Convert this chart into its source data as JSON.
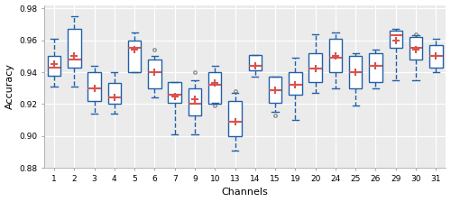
{
  "channels": [
    1,
    2,
    3,
    4,
    5,
    6,
    7,
    9,
    10,
    13,
    14,
    15,
    19,
    20,
    24,
    25,
    26,
    29,
    30,
    31
  ],
  "boxes": [
    {
      "q1": 0.938,
      "median": 0.943,
      "q3": 0.95,
      "mean": 0.945,
      "whislo": 0.931,
      "whishi": 0.961,
      "fliers": []
    },
    {
      "q1": 0.943,
      "median": 0.948,
      "q3": 0.967,
      "mean": 0.95,
      "whislo": 0.931,
      "whishi": 0.975,
      "fliers": []
    },
    {
      "q1": 0.922,
      "median": 0.93,
      "q3": 0.94,
      "mean": 0.93,
      "whislo": 0.914,
      "whishi": 0.944,
      "fliers": []
    },
    {
      "q1": 0.92,
      "median": 0.924,
      "q3": 0.933,
      "mean": 0.924,
      "whislo": 0.914,
      "whishi": 0.94,
      "fliers": []
    },
    {
      "q1": 0.94,
      "median": 0.955,
      "q3": 0.96,
      "mean": 0.954,
      "whislo": 0.94,
      "whishi": 0.965,
      "fliers": []
    },
    {
      "q1": 0.93,
      "median": 0.94,
      "q3": 0.948,
      "mean": 0.94,
      "whislo": 0.924,
      "whishi": 0.95,
      "fliers": [
        0.954
      ]
    },
    {
      "q1": 0.921,
      "median": 0.926,
      "q3": 0.934,
      "mean": 0.925,
      "whislo": 0.901,
      "whishi": 0.934,
      "fliers": []
    },
    {
      "q1": 0.913,
      "median": 0.92,
      "q3": 0.93,
      "mean": 0.923,
      "whislo": 0.901,
      "whishi": 0.935,
      "fliers": [
        0.94
      ]
    },
    {
      "q1": 0.92,
      "median": 0.932,
      "q3": 0.94,
      "mean": 0.933,
      "whislo": 0.921,
      "whishi": 0.944,
      "fliers": [
        0.919
      ]
    },
    {
      "q1": 0.9,
      "median": 0.909,
      "q3": 0.922,
      "mean": 0.909,
      "whislo": 0.891,
      "whishi": 0.927,
      "fliers": [
        0.928
      ]
    },
    {
      "q1": 0.941,
      "median": 0.944,
      "q3": 0.951,
      "mean": 0.944,
      "whislo": 0.937,
      "whishi": 0.951,
      "fliers": []
    },
    {
      "q1": 0.921,
      "median": 0.929,
      "q3": 0.937,
      "mean": 0.929,
      "whislo": 0.915,
      "whishi": 0.937,
      "fliers": [
        0.913
      ]
    },
    {
      "q1": 0.926,
      "median": 0.932,
      "q3": 0.94,
      "mean": 0.932,
      "whislo": 0.91,
      "whishi": 0.949,
      "fliers": []
    },
    {
      "q1": 0.934,
      "median": 0.942,
      "q3": 0.952,
      "mean": 0.942,
      "whislo": 0.927,
      "whishi": 0.964,
      "fliers": []
    },
    {
      "q1": 0.94,
      "median": 0.949,
      "q3": 0.961,
      "mean": 0.95,
      "whislo": 0.93,
      "whishi": 0.965,
      "fliers": []
    },
    {
      "q1": 0.93,
      "median": 0.94,
      "q3": 0.95,
      "mean": 0.94,
      "whislo": 0.919,
      "whishi": 0.952,
      "fliers": []
    },
    {
      "q1": 0.934,
      "median": 0.944,
      "q3": 0.952,
      "mean": 0.944,
      "whislo": 0.93,
      "whishi": 0.954,
      "fliers": []
    },
    {
      "q1": 0.955,
      "median": 0.963,
      "q3": 0.966,
      "mean": 0.96,
      "whislo": 0.935,
      "whishi": 0.967,
      "fliers": []
    },
    {
      "q1": 0.948,
      "median": 0.955,
      "q3": 0.962,
      "mean": 0.954,
      "whislo": 0.935,
      "whishi": 0.963,
      "fliers": [
        0.964
      ]
    },
    {
      "q1": 0.943,
      "median": 0.95,
      "q3": 0.957,
      "mean": 0.95,
      "whislo": 0.94,
      "whishi": 0.961,
      "fliers": []
    }
  ],
  "ylabel": "Accuracy",
  "xlabel": "Channels",
  "ylim": [
    0.88,
    0.982
  ],
  "yticks": [
    0.88,
    0.9,
    0.92,
    0.94,
    0.96,
    0.98
  ],
  "box_color": "#2060a8",
  "median_color": "#d9534f",
  "mean_color": "#d9534f",
  "whisker_color": "#2060a8",
  "flier_color": "#666666",
  "background_color": "#ebebeb",
  "grid_color": "#ffffff",
  "tick_fontsize": 6.5,
  "label_fontsize": 8
}
